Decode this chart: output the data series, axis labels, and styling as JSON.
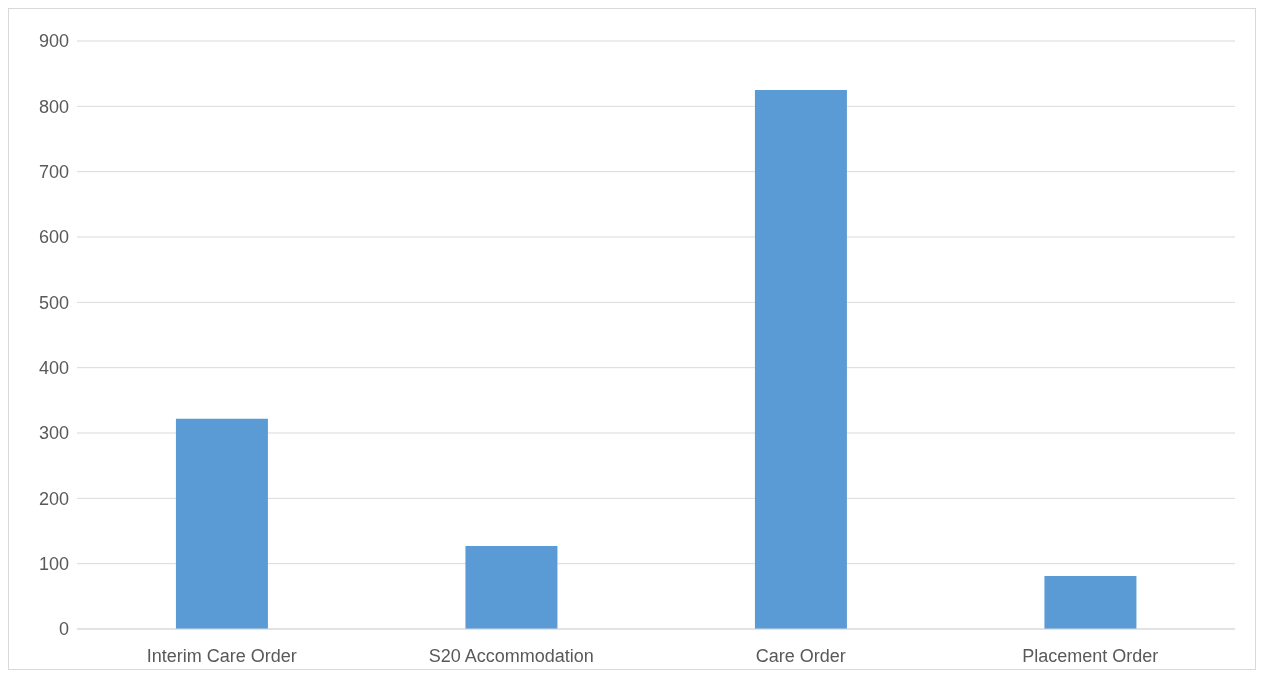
{
  "chart_data": {
    "type": "bar",
    "categories": [
      "Interim Care Order",
      "S20 Accommodation",
      "Care Order",
      "Placement Order"
    ],
    "values": [
      322,
      127,
      825,
      81
    ],
    "color": "#5b9bd5",
    "ylim": [
      0,
      900
    ],
    "yticks": [
      0,
      100,
      200,
      300,
      400,
      500,
      600,
      700,
      800,
      900
    ],
    "grid": "y"
  }
}
